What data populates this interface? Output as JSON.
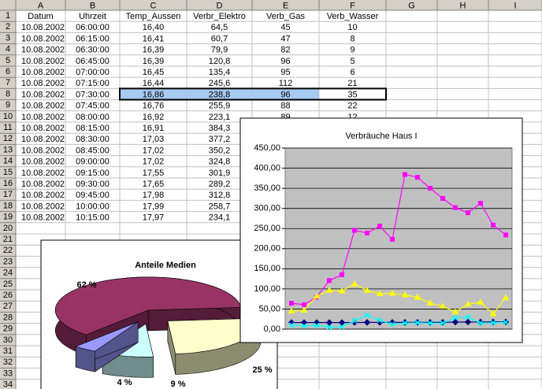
{
  "sheet": {
    "columns": [
      "A",
      "B",
      "C",
      "D",
      "E",
      "F",
      "G",
      "H",
      "I"
    ],
    "row_numbers": [
      1,
      2,
      3,
      4,
      5,
      6,
      7,
      8,
      9,
      10,
      11,
      12,
      13,
      14,
      15,
      16,
      17,
      18,
      19,
      20,
      21,
      22,
      23,
      24,
      25,
      26,
      27,
      28,
      29,
      30,
      31,
      32,
      33,
      34
    ],
    "rows": [
      [
        "Datum",
        "Uhrzeit",
        "Temp_Aussen",
        "Verbr_Elektro",
        "Verb_Gas",
        "Verb_Wasser"
      ],
      [
        "10.08.2002",
        "06:00:00",
        "16,40",
        "64,5",
        "45",
        "10"
      ],
      [
        "10.08.2002",
        "06:15:00",
        "16,41",
        "60,7",
        "47",
        "8"
      ],
      [
        "10.08.2002",
        "06:30:00",
        "16,39",
        "79,9",
        "82",
        "9"
      ],
      [
        "10.08.2002",
        "06:45:00",
        "16,39",
        "120,8",
        "96",
        "5"
      ],
      [
        "10.08.2002",
        "07:00:00",
        "16,45",
        "135,4",
        "95",
        "6"
      ],
      [
        "10.08.2002",
        "07:15:00",
        "16,44",
        "245,6",
        "112",
        "21"
      ],
      [
        "10.08.2002",
        "07:30:00",
        "16,86",
        "238,8",
        "96",
        "35"
      ],
      [
        "10.08.2002",
        "07:45:00",
        "16,76",
        "255,9",
        "88",
        "22"
      ],
      [
        "10.08.2002",
        "08:00:00",
        "16,92",
        "223,1",
        "89",
        "12"
      ],
      [
        "10.08.2002",
        "08:15:00",
        "16,91",
        "384,3"
      ],
      [
        "10.08.2002",
        "08:30:00",
        "17,03",
        "377,2"
      ],
      [
        "10.08.2002",
        "08:45:00",
        "17,02",
        "350,2"
      ],
      [
        "10.08.2002",
        "09:00:00",
        "17,02",
        "324,8"
      ],
      [
        "10.08.2002",
        "09:15:00",
        "17,55",
        "301,9"
      ],
      [
        "10.08.2002",
        "09:30:00",
        "17,65",
        "289,2"
      ],
      [
        "10.08.2002",
        "09:45:00",
        "17,98",
        "312,8"
      ],
      [
        "10.08.2002",
        "10:00:00",
        "17,99",
        "258,7"
      ],
      [
        "10.08.2002",
        "10:15:00",
        "17,97",
        "234,1"
      ]
    ]
  },
  "chart_data": [
    {
      "type": "line",
      "title": "Verbräuche Haus I",
      "categories": [
        null,
        null,
        null,
        null,
        null,
        null,
        null,
        null,
        null,
        null,
        null,
        null,
        null,
        null,
        null,
        null,
        null,
        null
      ],
      "ylim": [
        0,
        450
      ],
      "yticks": [
        {
          "value": 0,
          "label": "0,00"
        },
        {
          "value": 50,
          "label": "50,00"
        },
        {
          "value": 100,
          "label": "100,00"
        },
        {
          "value": 150,
          "label": "150,00"
        },
        {
          "value": 200,
          "label": "200,00"
        },
        {
          "value": 250,
          "label": "250,00"
        },
        {
          "value": 300,
          "label": "300,00"
        },
        {
          "value": 350,
          "label": "350,00"
        },
        {
          "value": 400,
          "label": "400,00"
        },
        {
          "value": 450,
          "label": "450,00"
        }
      ],
      "grid": true,
      "series": [
        {
          "color": "#000080",
          "values": [
            16.4,
            16.41,
            16.39,
            16.39,
            16.45,
            16.44,
            16.86,
            16.76,
            16.92,
            16.91,
            17.03,
            17.02,
            17.02,
            17.55,
            17.65,
            17.98,
            17.99,
            17.97
          ]
        },
        {
          "color": "#ff00ff",
          "values": [
            64.5,
            60.7,
            79.9,
            120.8,
            135.4,
            245.6,
            238.8,
            255.9,
            223.1,
            384.3,
            377.2,
            350.2,
            324.8,
            301.9,
            289.2,
            312.8,
            258.7,
            234.1
          ]
        },
        {
          "color": "#ffff00",
          "values": [
            45,
            47,
            82,
            96,
            95,
            112,
            96,
            88,
            89,
            85,
            79,
            65,
            57,
            43,
            62,
            67,
            38,
            78
          ]
        },
        {
          "color": "#00ffff",
          "values": [
            10,
            8,
            9,
            5,
            6,
            21,
            35,
            22,
            12,
            15,
            16,
            15,
            15,
            28,
            30,
            15,
            16,
            17
          ]
        }
      ]
    },
    {
      "type": "pie",
      "title": "Anteile Medien",
      "values": [
        62,
        25,
        9,
        4
      ],
      "value_labels": [
        "62 %",
        "25 %",
        "9 %",
        "4 %"
      ],
      "colors": [
        "#993366",
        "#ffffcc",
        "#ccffff",
        "#9999ff"
      ]
    }
  ]
}
